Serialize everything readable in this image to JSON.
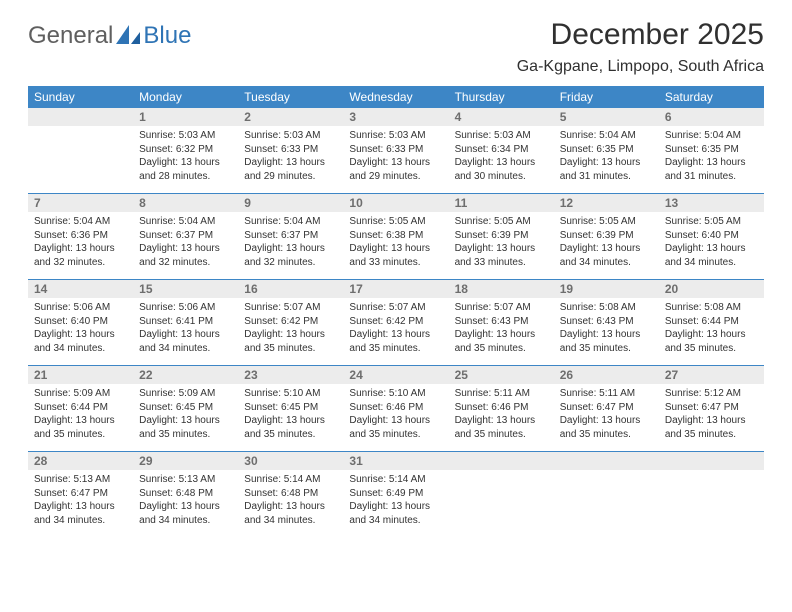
{
  "brand": {
    "word1": "General",
    "word2": "Blue",
    "accent_color": "#2f74b5"
  },
  "title": "December 2025",
  "location": "Ga-Kgpane, Limpopo, South Africa",
  "colors": {
    "header_bg": "#3d86c6",
    "header_text": "#ffffff",
    "daynum_bg": "#ececec",
    "daynum_text": "#6e6e6e",
    "rule": "#3d86c6",
    "body_text": "#333333"
  },
  "weekdays": [
    "Sunday",
    "Monday",
    "Tuesday",
    "Wednesday",
    "Thursday",
    "Friday",
    "Saturday"
  ],
  "weeks": [
    [
      {
        "n": "",
        "sunrise": "",
        "sunset": "",
        "daylight": ""
      },
      {
        "n": "1",
        "sunrise": "Sunrise: 5:03 AM",
        "sunset": "Sunset: 6:32 PM",
        "daylight": "Daylight: 13 hours and 28 minutes."
      },
      {
        "n": "2",
        "sunrise": "Sunrise: 5:03 AM",
        "sunset": "Sunset: 6:33 PM",
        "daylight": "Daylight: 13 hours and 29 minutes."
      },
      {
        "n": "3",
        "sunrise": "Sunrise: 5:03 AM",
        "sunset": "Sunset: 6:33 PM",
        "daylight": "Daylight: 13 hours and 29 minutes."
      },
      {
        "n": "4",
        "sunrise": "Sunrise: 5:03 AM",
        "sunset": "Sunset: 6:34 PM",
        "daylight": "Daylight: 13 hours and 30 minutes."
      },
      {
        "n": "5",
        "sunrise": "Sunrise: 5:04 AM",
        "sunset": "Sunset: 6:35 PM",
        "daylight": "Daylight: 13 hours and 31 minutes."
      },
      {
        "n": "6",
        "sunrise": "Sunrise: 5:04 AM",
        "sunset": "Sunset: 6:35 PM",
        "daylight": "Daylight: 13 hours and 31 minutes."
      }
    ],
    [
      {
        "n": "7",
        "sunrise": "Sunrise: 5:04 AM",
        "sunset": "Sunset: 6:36 PM",
        "daylight": "Daylight: 13 hours and 32 minutes."
      },
      {
        "n": "8",
        "sunrise": "Sunrise: 5:04 AM",
        "sunset": "Sunset: 6:37 PM",
        "daylight": "Daylight: 13 hours and 32 minutes."
      },
      {
        "n": "9",
        "sunrise": "Sunrise: 5:04 AM",
        "sunset": "Sunset: 6:37 PM",
        "daylight": "Daylight: 13 hours and 32 minutes."
      },
      {
        "n": "10",
        "sunrise": "Sunrise: 5:05 AM",
        "sunset": "Sunset: 6:38 PM",
        "daylight": "Daylight: 13 hours and 33 minutes."
      },
      {
        "n": "11",
        "sunrise": "Sunrise: 5:05 AM",
        "sunset": "Sunset: 6:39 PM",
        "daylight": "Daylight: 13 hours and 33 minutes."
      },
      {
        "n": "12",
        "sunrise": "Sunrise: 5:05 AM",
        "sunset": "Sunset: 6:39 PM",
        "daylight": "Daylight: 13 hours and 34 minutes."
      },
      {
        "n": "13",
        "sunrise": "Sunrise: 5:05 AM",
        "sunset": "Sunset: 6:40 PM",
        "daylight": "Daylight: 13 hours and 34 minutes."
      }
    ],
    [
      {
        "n": "14",
        "sunrise": "Sunrise: 5:06 AM",
        "sunset": "Sunset: 6:40 PM",
        "daylight": "Daylight: 13 hours and 34 minutes."
      },
      {
        "n": "15",
        "sunrise": "Sunrise: 5:06 AM",
        "sunset": "Sunset: 6:41 PM",
        "daylight": "Daylight: 13 hours and 34 minutes."
      },
      {
        "n": "16",
        "sunrise": "Sunrise: 5:07 AM",
        "sunset": "Sunset: 6:42 PM",
        "daylight": "Daylight: 13 hours and 35 minutes."
      },
      {
        "n": "17",
        "sunrise": "Sunrise: 5:07 AM",
        "sunset": "Sunset: 6:42 PM",
        "daylight": "Daylight: 13 hours and 35 minutes."
      },
      {
        "n": "18",
        "sunrise": "Sunrise: 5:07 AM",
        "sunset": "Sunset: 6:43 PM",
        "daylight": "Daylight: 13 hours and 35 minutes."
      },
      {
        "n": "19",
        "sunrise": "Sunrise: 5:08 AM",
        "sunset": "Sunset: 6:43 PM",
        "daylight": "Daylight: 13 hours and 35 minutes."
      },
      {
        "n": "20",
        "sunrise": "Sunrise: 5:08 AM",
        "sunset": "Sunset: 6:44 PM",
        "daylight": "Daylight: 13 hours and 35 minutes."
      }
    ],
    [
      {
        "n": "21",
        "sunrise": "Sunrise: 5:09 AM",
        "sunset": "Sunset: 6:44 PM",
        "daylight": "Daylight: 13 hours and 35 minutes."
      },
      {
        "n": "22",
        "sunrise": "Sunrise: 5:09 AM",
        "sunset": "Sunset: 6:45 PM",
        "daylight": "Daylight: 13 hours and 35 minutes."
      },
      {
        "n": "23",
        "sunrise": "Sunrise: 5:10 AM",
        "sunset": "Sunset: 6:45 PM",
        "daylight": "Daylight: 13 hours and 35 minutes."
      },
      {
        "n": "24",
        "sunrise": "Sunrise: 5:10 AM",
        "sunset": "Sunset: 6:46 PM",
        "daylight": "Daylight: 13 hours and 35 minutes."
      },
      {
        "n": "25",
        "sunrise": "Sunrise: 5:11 AM",
        "sunset": "Sunset: 6:46 PM",
        "daylight": "Daylight: 13 hours and 35 minutes."
      },
      {
        "n": "26",
        "sunrise": "Sunrise: 5:11 AM",
        "sunset": "Sunset: 6:47 PM",
        "daylight": "Daylight: 13 hours and 35 minutes."
      },
      {
        "n": "27",
        "sunrise": "Sunrise: 5:12 AM",
        "sunset": "Sunset: 6:47 PM",
        "daylight": "Daylight: 13 hours and 35 minutes."
      }
    ],
    [
      {
        "n": "28",
        "sunrise": "Sunrise: 5:13 AM",
        "sunset": "Sunset: 6:47 PM",
        "daylight": "Daylight: 13 hours and 34 minutes."
      },
      {
        "n": "29",
        "sunrise": "Sunrise: 5:13 AM",
        "sunset": "Sunset: 6:48 PM",
        "daylight": "Daylight: 13 hours and 34 minutes."
      },
      {
        "n": "30",
        "sunrise": "Sunrise: 5:14 AM",
        "sunset": "Sunset: 6:48 PM",
        "daylight": "Daylight: 13 hours and 34 minutes."
      },
      {
        "n": "31",
        "sunrise": "Sunrise: 5:14 AM",
        "sunset": "Sunset: 6:49 PM",
        "daylight": "Daylight: 13 hours and 34 minutes."
      },
      {
        "n": "",
        "sunrise": "",
        "sunset": "",
        "daylight": ""
      },
      {
        "n": "",
        "sunrise": "",
        "sunset": "",
        "daylight": ""
      },
      {
        "n": "",
        "sunrise": "",
        "sunset": "",
        "daylight": ""
      }
    ]
  ]
}
